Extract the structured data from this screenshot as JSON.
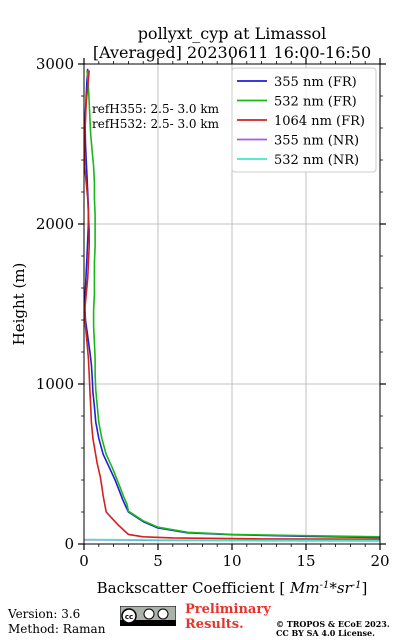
{
  "chart_data": {
    "type": "line",
    "title": "pollyxt_cyp at Limassol",
    "subtitle": "[Averaged] 20230611 16:00-16:50",
    "xlabel": "Backscatter Coefficient [$Mm^{-1}*sr^{-1}$]",
    "ylabel": "Height (m)",
    "xlim": [
      0,
      20
    ],
    "ylim": [
      0,
      3000
    ],
    "xticks": [
      0,
      5,
      10,
      15,
      20
    ],
    "yticks": [
      0,
      1000,
      2000,
      3000
    ],
    "grid": true,
    "legend_position": "top-right",
    "annotations": [
      "refH355:  2.5- 3.0 km",
      "refH532:  2.5- 3.0 km"
    ],
    "series": [
      {
        "name": "355 nm (FR)",
        "color": "#1f1fd6",
        "points": [
          [
            20,
            40
          ],
          [
            15,
            48
          ],
          [
            10,
            58
          ],
          [
            7,
            70
          ],
          [
            5,
            100
          ],
          [
            4,
            140
          ],
          [
            3,
            200
          ],
          [
            2.8,
            240
          ],
          [
            2.6,
            280
          ],
          [
            2.4,
            330
          ],
          [
            2.1,
            400
          ],
          [
            1.7,
            480
          ],
          [
            1.3,
            560
          ],
          [
            1.0,
            660
          ],
          [
            0.8,
            760
          ],
          [
            0.7,
            860
          ],
          [
            0.6,
            950
          ],
          [
            0.55,
            1050
          ],
          [
            0.5,
            1120
          ],
          [
            0.4,
            1200
          ],
          [
            0.25,
            1300
          ],
          [
            0.1,
            1400
          ],
          [
            0.05,
            1500
          ],
          [
            0.1,
            1600
          ],
          [
            0.15,
            1700
          ],
          [
            0.2,
            1800
          ],
          [
            0.25,
            1900
          ],
          [
            0.3,
            2000
          ],
          [
            0.3,
            2100
          ],
          [
            0.25,
            2200
          ],
          [
            0.2,
            2300
          ],
          [
            0.15,
            2400
          ],
          [
            0.1,
            2500
          ],
          [
            0.08,
            2600
          ],
          [
            0.1,
            2700
          ],
          [
            0.15,
            2800
          ],
          [
            0.2,
            2900
          ],
          [
            0.25,
            2970
          ]
        ]
      },
      {
        "name": "532 nm (FR)",
        "color": "#17b817",
        "points": [
          [
            20,
            45
          ],
          [
            15,
            52
          ],
          [
            10,
            60
          ],
          [
            7,
            73
          ],
          [
            5,
            105
          ],
          [
            4,
            145
          ],
          [
            3,
            205
          ],
          [
            2.9,
            250
          ],
          [
            2.7,
            290
          ],
          [
            2.5,
            340
          ],
          [
            2.2,
            410
          ],
          [
            1.9,
            480
          ],
          [
            1.5,
            560
          ],
          [
            1.2,
            660
          ],
          [
            1.0,
            760
          ],
          [
            0.9,
            860
          ],
          [
            0.8,
            960
          ],
          [
            0.75,
            1060
          ],
          [
            0.75,
            1160
          ],
          [
            0.7,
            1260
          ],
          [
            0.65,
            1360
          ],
          [
            0.65,
            1460
          ],
          [
            0.7,
            1560
          ],
          [
            0.7,
            1660
          ],
          [
            0.7,
            1760
          ],
          [
            0.75,
            1860
          ],
          [
            0.75,
            1960
          ],
          [
            0.75,
            2060
          ],
          [
            0.7,
            2160
          ],
          [
            0.7,
            2260
          ],
          [
            0.65,
            2360
          ],
          [
            0.55,
            2460
          ],
          [
            0.45,
            2560
          ],
          [
            0.4,
            2660
          ],
          [
            0.35,
            2760
          ],
          [
            0.3,
            2860
          ],
          [
            0.2,
            2960
          ]
        ]
      },
      {
        "name": "1064 nm (FR)",
        "color": "#d61f1f",
        "points": [
          [
            20,
            30
          ],
          [
            12,
            32
          ],
          [
            6,
            38
          ],
          [
            4,
            45
          ],
          [
            3,
            60
          ],
          [
            2.7,
            85
          ],
          [
            2.3,
            120
          ],
          [
            1.9,
            160
          ],
          [
            1.5,
            200
          ],
          [
            1.4,
            250
          ],
          [
            1.3,
            300
          ],
          [
            1.2,
            360
          ],
          [
            1.1,
            420
          ],
          [
            0.9,
            500
          ],
          [
            0.75,
            580
          ],
          [
            0.6,
            660
          ],
          [
            0.5,
            760
          ],
          [
            0.45,
            860
          ],
          [
            0.4,
            960
          ],
          [
            0.35,
            1060
          ],
          [
            0.3,
            1160
          ],
          [
            0.2,
            1260
          ],
          [
            0.1,
            1360
          ],
          [
            0.05,
            1460
          ],
          [
            0.15,
            1560
          ],
          [
            0.25,
            1660
          ],
          [
            0.3,
            1760
          ],
          [
            0.35,
            1860
          ],
          [
            0.35,
            1960
          ],
          [
            0.3,
            2060
          ],
          [
            0.25,
            2160
          ],
          [
            0.15,
            2260
          ],
          [
            0.05,
            2360
          ],
          [
            0.02,
            2460
          ],
          [
            0.05,
            2560
          ],
          [
            0.1,
            2660
          ],
          [
            0.15,
            2760
          ],
          [
            0.25,
            2860
          ],
          [
            0.35,
            2960
          ]
        ]
      },
      {
        "name": "355 nm (NR)",
        "color": "#a35ce0",
        "points": [
          [
            20,
            20
          ],
          [
            10,
            22
          ],
          [
            5,
            23
          ],
          [
            2,
            25
          ],
          [
            0.5,
            26
          ],
          [
            0,
            26
          ]
        ]
      },
      {
        "name": "532 nm (NR)",
        "color": "#40e8c8",
        "points": [
          [
            20,
            22
          ],
          [
            10,
            24
          ],
          [
            5,
            25
          ],
          [
            2,
            27
          ],
          [
            0.5,
            28
          ],
          [
            0,
            28
          ]
        ]
      }
    ]
  },
  "footer": {
    "version": "Version: 3.6",
    "method": "Method: Raman",
    "preliminary_line1": "Preliminary",
    "preliminary_line2": "Results.",
    "copyright_line1": "© TROPOS & ECoE 2023.",
    "copyright_line2": "CC BY SA 4.0 License.",
    "license_logo_text": "cc"
  }
}
